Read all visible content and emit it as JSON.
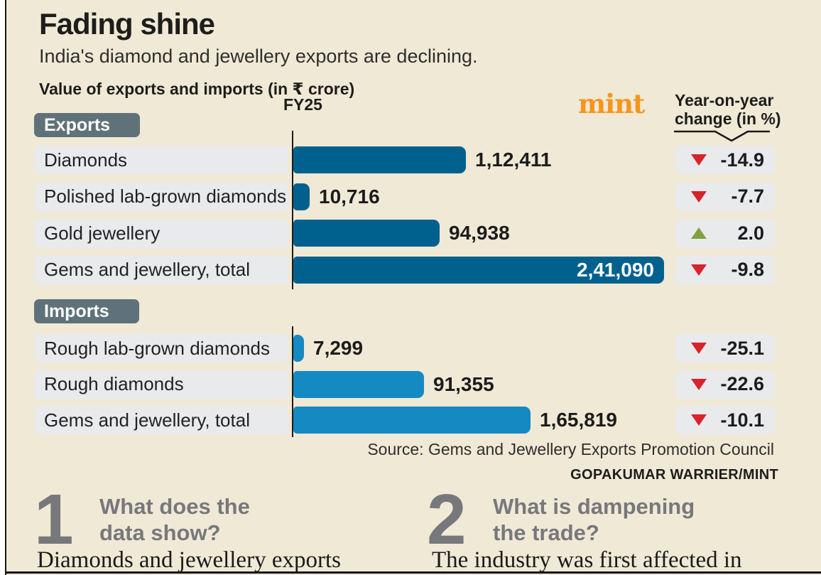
{
  "poster": {
    "title": "Fading shine",
    "subtitle": "India's diamond and jewellery exports are declining.",
    "metric_note": "Value of exports and imports (in ₹ crore)",
    "brand": "mint",
    "fy_label": "FY25",
    "yoy_header": {
      "line1": "Year-on-year",
      "line2": "change (in %)"
    }
  },
  "chart_data": {
    "type": "bar",
    "orientation": "horizontal",
    "title": "Value of exports and imports (in ₹ crore)",
    "unit": "₹ crore",
    "period": "FY25",
    "grid": false,
    "legend_position": "none",
    "value_axis_min": 0,
    "sections": [
      {
        "label": "Exports",
        "bar_color": "#00618f",
        "rows": [
          {
            "category": "Diamonds",
            "value": 112411,
            "value_label": "1,12,411",
            "yoy_pct": -14.9,
            "yoy_label": "-14.9",
            "direction": "down"
          },
          {
            "category": "Polished lab-grown diamonds",
            "value": 10716,
            "value_label": "10,716",
            "yoy_pct": -7.7,
            "yoy_label": "-7.7",
            "direction": "down"
          },
          {
            "category": "Gold jewellery",
            "value": 94938,
            "value_label": "94,938",
            "yoy_pct": 2.0,
            "yoy_label": "2.0",
            "direction": "up"
          },
          {
            "category": "Gems and jewellery, total",
            "value": 241090,
            "value_label": "2,41,090",
            "yoy_pct": -9.8,
            "yoy_label": "-9.8",
            "direction": "down"
          }
        ]
      },
      {
        "label": "Imports",
        "bar_color": "#1589c2",
        "rows": [
          {
            "category": "Rough lab-grown diamonds",
            "value": 7299,
            "value_label": "7,299",
            "yoy_pct": -25.1,
            "yoy_label": "-25.1",
            "direction": "down"
          },
          {
            "category": "Rough diamonds",
            "value": 91355,
            "value_label": "91,355",
            "yoy_pct": -22.6,
            "yoy_label": "-22.6",
            "direction": "down"
          },
          {
            "category": "Gems and jewellery, total",
            "value": 165819,
            "value_label": "1,65,819",
            "yoy_pct": -10.1,
            "yoy_label": "-10.1",
            "direction": "down"
          }
        ]
      }
    ],
    "colors": {
      "background": "#f0e9d6",
      "exports_bar": "#00618f",
      "imports_bar": "#1589c2",
      "label_box": "#e9eaec",
      "section_badge": "#5f7279",
      "negative": "#d8232a",
      "positive": "#7fa33d",
      "brand_orange": "#f7941e"
    }
  },
  "footer": {
    "source": "Source: Gems and Jewellery Exports Promotion Council",
    "credit": "GOPAKUMAR WARRIER/MINT"
  },
  "qa": {
    "items": [
      {
        "number": "1",
        "q_line1": "What does the",
        "q_line2": "data show?",
        "body": "Diamonds and jewellery exports"
      },
      {
        "number": "2",
        "q_line1": "What is dampening",
        "q_line2": "the trade?",
        "body": "The industry was first affected in"
      }
    ]
  }
}
